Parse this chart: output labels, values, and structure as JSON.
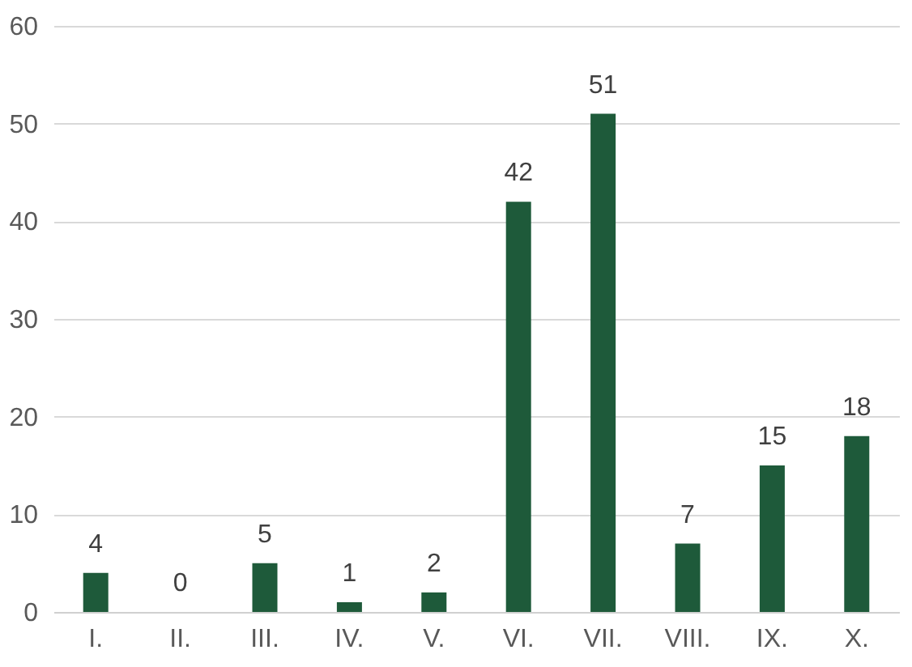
{
  "chart_data": {
    "type": "bar",
    "categories": [
      "I.",
      "II.",
      "III.",
      "IV.",
      "V.",
      "VI.",
      "VII.",
      "VIII.",
      "IX.",
      "X."
    ],
    "values": [
      4,
      0,
      5,
      1,
      2,
      42,
      51,
      7,
      15,
      18
    ],
    "color": "#1e5a3a",
    "ylim": [
      0,
      60
    ],
    "yticks": [
      0,
      10,
      20,
      30,
      40,
      50,
      60
    ],
    "grid": "y",
    "data_labels": true
  }
}
